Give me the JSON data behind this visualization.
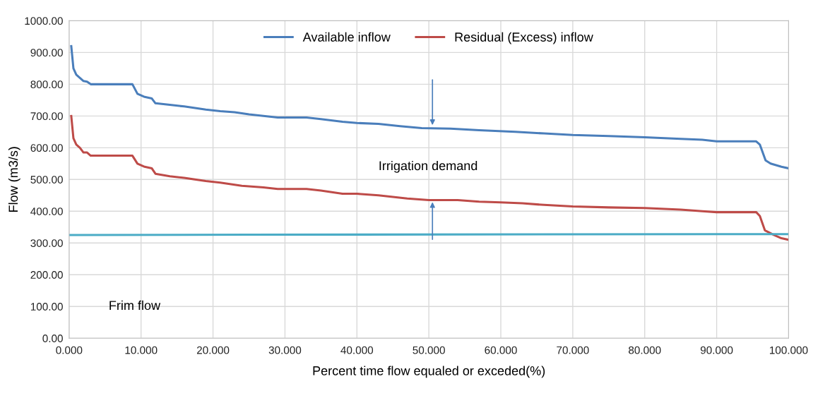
{
  "chart_data": {
    "type": "line",
    "xlabel": "Percent time flow equaled or exceded(%)",
    "ylabel": "Flow (m3/s)",
    "xlim": [
      0,
      100
    ],
    "ylim": [
      0,
      1000
    ],
    "xticks": [
      {
        "value": 0,
        "label": "0.000"
      },
      {
        "value": 10,
        "label": "10.000"
      },
      {
        "value": 20,
        "label": "20.000"
      },
      {
        "value": 30,
        "label": "30.000"
      },
      {
        "value": 40,
        "label": "40.000"
      },
      {
        "value": 50,
        "label": "50.000"
      },
      {
        "value": 60,
        "label": "60.000"
      },
      {
        "value": 70,
        "label": "70.000"
      },
      {
        "value": 80,
        "label": "80.000"
      },
      {
        "value": 90,
        "label": "90.000"
      },
      {
        "value": 100,
        "label": "100.000"
      }
    ],
    "yticks": [
      {
        "value": 0,
        "label": "0.00"
      },
      {
        "value": 100,
        "label": "100.00"
      },
      {
        "value": 200,
        "label": "200.00"
      },
      {
        "value": 300,
        "label": "300.00"
      },
      {
        "value": 400,
        "label": "400.00"
      },
      {
        "value": 500,
        "label": "500.00"
      },
      {
        "value": 600,
        "label": "600.00"
      },
      {
        "value": 700,
        "label": "700.00"
      },
      {
        "value": 800,
        "label": "800.00"
      },
      {
        "value": 900,
        "label": "900.00"
      },
      {
        "value": 1000,
        "label": "1000.00"
      }
    ],
    "grid": true,
    "legend": "top",
    "series": [
      {
        "name": "Available inflow",
        "color": "#4a7ebb",
        "x": [
          0.3,
          0.6,
          1,
          1.5,
          2,
          2.5,
          3,
          5,
          8.8,
          9.5,
          10.5,
          11.5,
          12,
          14,
          16,
          19,
          21,
          23,
          25,
          27,
          29,
          33,
          35,
          38,
          40,
          43,
          46,
          49,
          53,
          57,
          62,
          66,
          70,
          75,
          80,
          85,
          88,
          90,
          95.5,
          96,
          96.8,
          97.5,
          99,
          100
        ],
        "values": [
          920,
          850,
          830,
          820,
          810,
          808,
          800,
          800,
          800,
          770,
          760,
          755,
          740,
          735,
          730,
          720,
          715,
          712,
          705,
          700,
          695,
          695,
          690,
          682,
          678,
          675,
          668,
          662,
          660,
          655,
          650,
          645,
          640,
          637,
          633,
          628,
          625,
          620,
          620,
          610,
          560,
          550,
          540,
          535
        ]
      },
      {
        "name": "Residual (Excess) inflow",
        "color": "#be4b48",
        "x": [
          0.3,
          0.6,
          1,
          1.5,
          2,
          2.5,
          3,
          5,
          8.8,
          9.5,
          10.5,
          11.5,
          12,
          14,
          16,
          19,
          21,
          24,
          27,
          29,
          33,
          35,
          38,
          40,
          43,
          45,
          47,
          50,
          54,
          57,
          60,
          63,
          66,
          70,
          75,
          80,
          85,
          88,
          90,
          95.5,
          96,
          96.7,
          98,
          99,
          100
        ],
        "values": [
          700,
          630,
          610,
          600,
          585,
          585,
          575,
          575,
          575,
          550,
          540,
          535,
          518,
          510,
          505,
          495,
          490,
          480,
          475,
          470,
          470,
          465,
          455,
          455,
          450,
          445,
          440,
          435,
          435,
          430,
          428,
          425,
          420,
          415,
          412,
          410,
          405,
          400,
          397,
          397,
          385,
          340,
          325,
          315,
          310
        ]
      },
      {
        "color": "#4bacc6",
        "x": [
          0,
          25,
          100
        ],
        "values": [
          325,
          326,
          328
        ]
      }
    ],
    "annotations": [
      "Irrigation demand",
      "Frim flow"
    ]
  }
}
